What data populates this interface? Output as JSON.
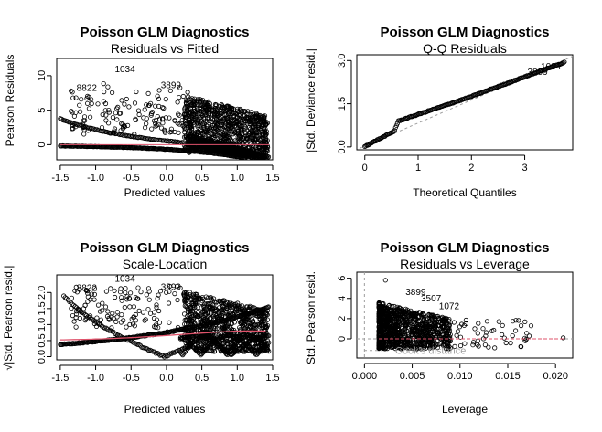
{
  "chart_data": [
    {
      "type": "scatter",
      "title": "Poisson GLM Diagnostics",
      "subtitle": "Residuals vs Fitted",
      "xlabel": "Predicted values",
      "ylabel": "Pearson Residuals",
      "xlim": [
        -1.55,
        1.5
      ],
      "ylim": [
        -2.2,
        12.5
      ],
      "xticks": [
        "-1.5",
        "-1.0",
        "-0.5",
        "0.0",
        "0.5",
        "1.0",
        "1.5"
      ],
      "yticks": [
        "0",
        "5",
        "10"
      ],
      "grid": false,
      "smooth_color": "#DF536B",
      "point_labels": [
        {
          "text": "1034",
          "x": -0.73,
          "y": 10.9
        },
        {
          "text": "8822",
          "x": -1.27,
          "y": 8.2
        },
        {
          "text": "3899",
          "x": -0.08,
          "y": 8.6
        }
      ]
    },
    {
      "type": "scatter",
      "title": "Poisson GLM Diagnostics",
      "subtitle": "Q-Q Residuals",
      "xlabel": "Theoretical Quantiles",
      "ylabel": "|Std. Deviance resid.|",
      "xlim": [
        -0.15,
        3.9
      ],
      "ylim": [
        -0.1,
        3.2
      ],
      "xticks": [
        "0",
        "1",
        "2",
        "3"
      ],
      "yticks": [
        "0.0",
        "1.5",
        "3.0"
      ],
      "grid": false,
      "reference_line_color": "#9E9E9E",
      "point_labels": [
        {
          "text": "3899",
          "x": 3.05,
          "y": 2.6
        },
        {
          "text": "1034",
          "x": 3.3,
          "y": 2.78
        }
      ]
    },
    {
      "type": "scatter",
      "title": "Poisson GLM Diagnostics",
      "subtitle": "Scale-Location",
      "xlabel": "Predicted values",
      "ylabel": "√|Std. Pearson resid.|",
      "xlim": [
        -1.55,
        1.5
      ],
      "ylim": [
        -0.1,
        2.55
      ],
      "xticks": [
        "-1.5",
        "-1.0",
        "-0.5",
        "0.0",
        "0.5",
        "1.0",
        "1.5"
      ],
      "yticks": [
        "0.0",
        "0.5",
        "1.0",
        "1.5",
        "2.0"
      ],
      "grid": false,
      "smooth_color": "#DF536B",
      "point_labels": [
        {
          "text": "1034",
          "x": -0.73,
          "y": 2.42
        },
        {
          "text": "8822",
          "x": -1.27,
          "y": 2.13
        },
        {
          "text": "3899",
          "x": -0.08,
          "y": 2.16
        }
      ]
    },
    {
      "type": "scatter",
      "title": "Poisson GLM Diagnostics",
      "subtitle": "Residuals vs Leverage",
      "xlabel": "Leverage",
      "ylabel": "Std. Pearson resid.",
      "xlim": [
        -0.0008,
        0.0218
      ],
      "ylim": [
        -1.9,
        6.6
      ],
      "xticks": [
        "0.000",
        "0.005",
        "0.010",
        "0.015",
        "0.020"
      ],
      "yticks": [
        "0",
        "2",
        "4",
        "6"
      ],
      "grid": false,
      "smooth_color": "#DF536B",
      "cooks_label": "Cook's distance",
      "point_labels": [
        {
          "text": "3899",
          "x": 0.0043,
          "y": 4.6
        },
        {
          "text": "3507",
          "x": 0.0059,
          "y": 4.0
        },
        {
          "text": "1072",
          "x": 0.0078,
          "y": 3.2
        }
      ]
    }
  ]
}
